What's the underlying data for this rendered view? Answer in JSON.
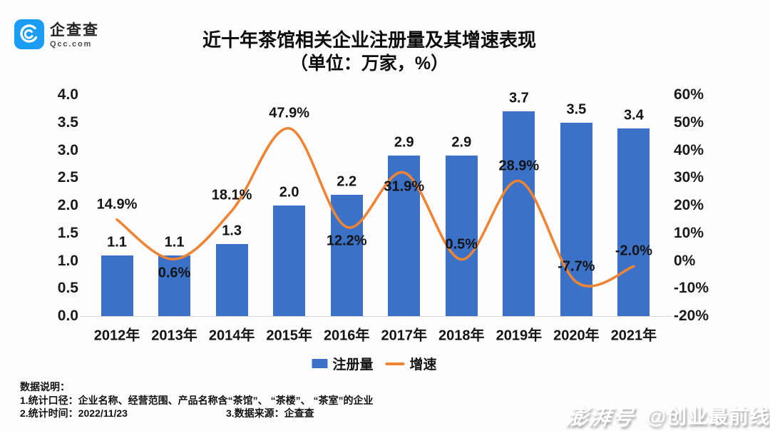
{
  "header": {
    "logo": {
      "name": "企查查",
      "domain": "Qcc.com",
      "color": "#1b9df5"
    },
    "title_line1": "近十年茶馆相关企业注册量及其增速表现",
    "title_line2": "（单位：万家，%）"
  },
  "chart_data": {
    "type": "bar",
    "categories": [
      "2012年",
      "2013年",
      "2014年",
      "2015年",
      "2016年",
      "2017年",
      "2018年",
      "2019年",
      "2020年",
      "2021年"
    ],
    "series": [
      {
        "name": "注册量",
        "type": "bar",
        "unit": "万家",
        "color": "#3b72c8",
        "values": [
          1.1,
          1.1,
          1.3,
          2.0,
          2.2,
          2.9,
          2.9,
          3.7,
          3.5,
          3.4
        ],
        "labels": [
          "1.1",
          "1.1",
          "1.3",
          "2.0",
          "2.2",
          "2.9",
          "2.9",
          "3.7",
          "3.5",
          "3.4"
        ]
      },
      {
        "name": "增速",
        "type": "line",
        "unit": "%",
        "color": "#ef8434",
        "values": [
          14.9,
          0.6,
          18.1,
          47.9,
          12.2,
          31.9,
          0.5,
          28.9,
          -7.7,
          -2.0
        ],
        "labels": [
          "14.9%",
          "0.6%",
          "18.1%",
          "47.9%",
          "12.2%",
          "31.9%",
          "0.5%",
          "28.9%",
          "-7.7%",
          "-2.0%"
        ],
        "label_positions": [
          "above",
          "below",
          "above",
          "above",
          "below",
          "below",
          "above",
          "above",
          "above",
          "above"
        ]
      }
    ],
    "left_axis": {
      "ticks": [
        "4.0",
        "3.5",
        "3.0",
        "2.5",
        "2.0",
        "1.5",
        "1.0",
        "0.5",
        "0.0"
      ],
      "min": 0,
      "max": 4
    },
    "right_axis": {
      "ticks": [
        "60%",
        "50%",
        "40%",
        "30%",
        "20%",
        "10%",
        "0%",
        "-10%",
        "-20%"
      ],
      "min": -20,
      "max": 60
    },
    "grid": false,
    "legend_position": "bottom",
    "title": "近十年茶馆相关企业注册量及其增速表现",
    "subtitle": "（单位：万家，%）"
  },
  "legend": {
    "bar_label": "注册量",
    "line_label": "增速"
  },
  "footer": {
    "heading": "数据说明：",
    "note1": "1.统计口径：企业名称、经营范围、产品名称含“茶馆”、 “茶楼”、 “茶室”的企业",
    "note2_left": "2.统计时间：2022/11/23",
    "note2_right": "3.数据来源：企查查"
  },
  "watermark": {
    "brand": "澎湃号",
    "account": "@创业最前线"
  }
}
